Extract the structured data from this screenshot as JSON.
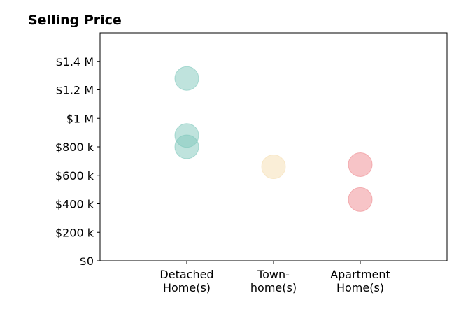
{
  "chart_data": {
    "type": "scatter",
    "title": "Selling Price",
    "xlabel": "",
    "ylabel": "",
    "categories": [
      [
        "Detached",
        "Home(s)"
      ],
      [
        "Town-",
        "home(s)"
      ],
      [
        "Apartment",
        "Home(s)"
      ]
    ],
    "xlim": [
      -1,
      3
    ],
    "ylim": [
      0,
      1600000
    ],
    "yticks": [
      0,
      200000,
      400000,
      600000,
      800000,
      1000000,
      1200000,
      1400000
    ],
    "ytick_labels": [
      "$0",
      "$200 k",
      "$400 k",
      "$600 k",
      "$800 k",
      "$1 M",
      "$1.2 M",
      "$1.4 M"
    ],
    "grid": false,
    "points": [
      {
        "category": 0,
        "value": 1280000,
        "color": "#7fc8bc"
      },
      {
        "category": 0,
        "value": 880000,
        "color": "#7fc8bc"
      },
      {
        "category": 0,
        "value": 800000,
        "color": "#7fc8bc"
      },
      {
        "category": 1,
        "value": 660000,
        "color": "#f5deb0"
      },
      {
        "category": 2,
        "value": 675000,
        "color": "#ef8a90"
      },
      {
        "category": 2,
        "value": 430000,
        "color": "#ef8a90"
      }
    ]
  }
}
